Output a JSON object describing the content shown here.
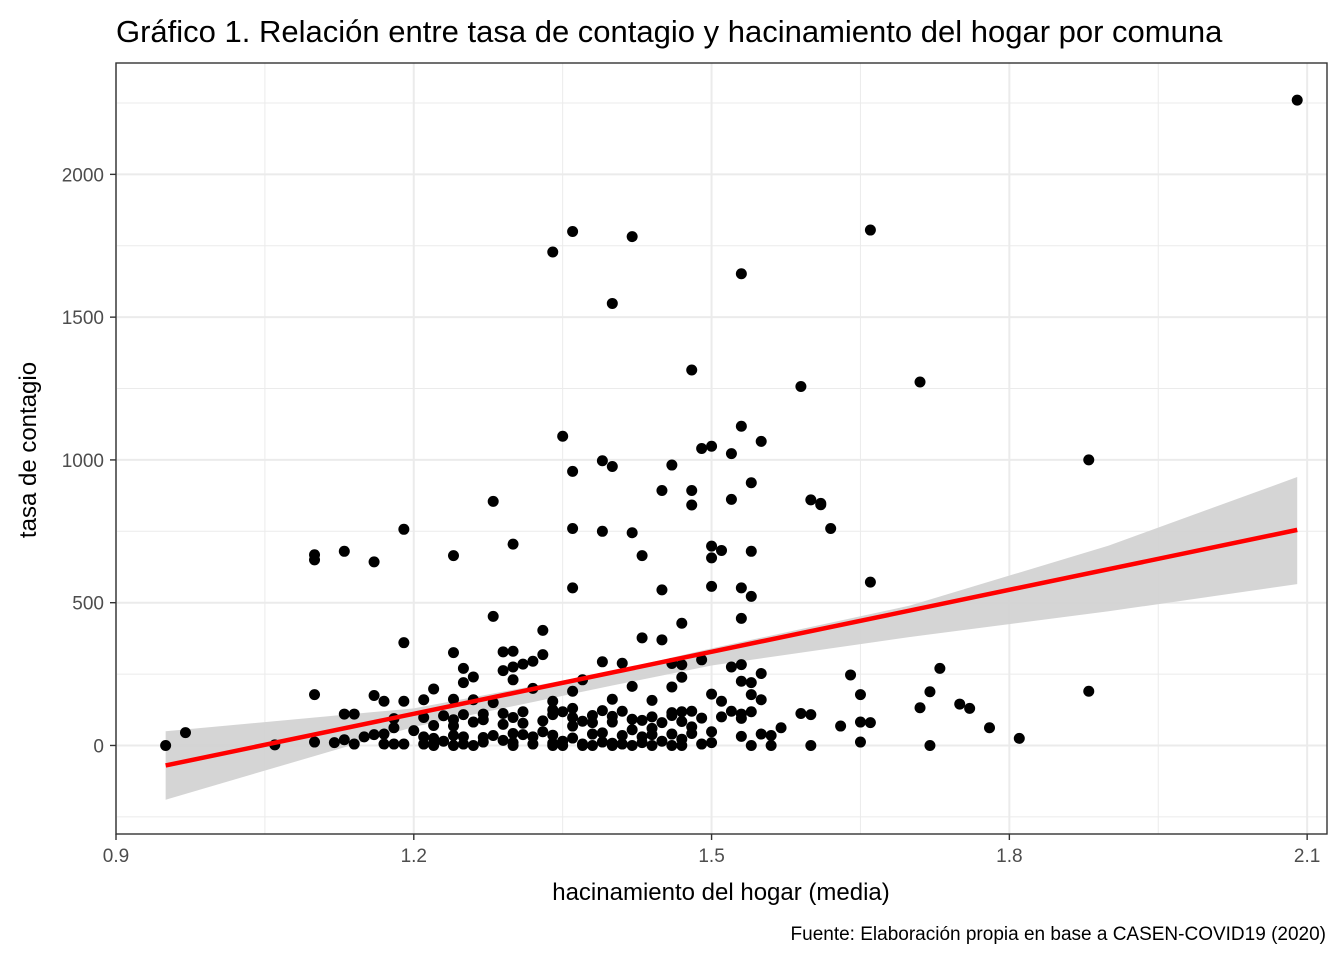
{
  "chart_data": {
    "type": "scatter",
    "title": "Gráfico 1. Relación entre tasa de contagio y hacinamiento del hogar por comuna",
    "xlabel": "hacinamiento del hogar (media)",
    "ylabel": "tasa de contagio",
    "caption": "Fuente: Elaboración propia en base a CASEN-COVID19 (2020)",
    "xlim": [
      0.9,
      2.12
    ],
    "ylim": [
      -310,
      2390
    ],
    "x_ticks": [
      0.9,
      1.2,
      1.5,
      1.8,
      2.1
    ],
    "x_tick_labels": [
      "0.9",
      "1.2",
      "1.5",
      "1.8",
      "2.1"
    ],
    "y_ticks": [
      0,
      500,
      1000,
      1500,
      2000
    ],
    "y_tick_labels": [
      "0",
      "500",
      "1000",
      "1500",
      "2000"
    ],
    "grid": true,
    "legend": "none",
    "colors": {
      "points": "#000000",
      "fit_line": "#ff0000",
      "ribbon": "#d3d3d3",
      "grid": "#ebebeb"
    },
    "fit_line": {
      "x": [
        0.95,
        2.09
      ],
      "y": [
        -70,
        755
      ]
    },
    "confidence_band": {
      "x": [
        0.95,
        1.2,
        1.4,
        1.5,
        1.7,
        1.9,
        2.09
      ],
      "lower": [
        -190,
        65,
        210,
        280,
        380,
        470,
        565
      ],
      "upper": [
        50,
        130,
        260,
        340,
        490,
        700,
        940
      ]
    },
    "points": [
      [
        2.09,
        2260
      ],
      [
        1.66,
        1805
      ],
      [
        1.36,
        1800
      ],
      [
        1.42,
        1782
      ],
      [
        1.34,
        1728
      ],
      [
        1.53,
        1652
      ],
      [
        1.4,
        1548
      ],
      [
        1.48,
        1315
      ],
      [
        1.59,
        1257
      ],
      [
        1.71,
        1273
      ],
      [
        1.53,
        1118
      ],
      [
        1.35,
        1083
      ],
      [
        1.55,
        1065
      ],
      [
        1.5,
        1048
      ],
      [
        1.49,
        1040
      ],
      [
        1.52,
        1022
      ],
      [
        1.39,
        997
      ],
      [
        1.4,
        977
      ],
      [
        1.46,
        982
      ],
      [
        1.36,
        960
      ],
      [
        1.88,
        1000
      ],
      [
        1.54,
        920
      ],
      [
        1.45,
        893
      ],
      [
        1.48,
        893
      ],
      [
        1.52,
        862
      ],
      [
        1.6,
        860
      ],
      [
        1.61,
        848
      ],
      [
        1.61,
        843
      ],
      [
        1.28,
        855
      ],
      [
        1.48,
        842
      ],
      [
        1.62,
        760
      ],
      [
        1.36,
        760
      ],
      [
        1.19,
        757
      ],
      [
        1.39,
        750
      ],
      [
        1.42,
        745
      ],
      [
        1.3,
        705
      ],
      [
        1.5,
        698
      ],
      [
        1.51,
        683
      ],
      [
        1.54,
        680
      ],
      [
        1.1,
        668
      ],
      [
        1.1,
        650
      ],
      [
        1.13,
        680
      ],
      [
        1.16,
        643
      ],
      [
        1.24,
        665
      ],
      [
        1.43,
        665
      ],
      [
        1.5,
        657
      ],
      [
        1.66,
        572
      ],
      [
        1.5,
        557
      ],
      [
        1.36,
        552
      ],
      [
        1.53,
        552
      ],
      [
        1.45,
        545
      ],
      [
        1.54,
        522
      ],
      [
        1.28,
        452
      ],
      [
        1.53,
        445
      ],
      [
        1.47,
        428
      ],
      [
        1.33,
        403
      ],
      [
        1.43,
        377
      ],
      [
        1.45,
        370
      ],
      [
        1.19,
        360
      ],
      [
        1.24,
        325
      ],
      [
        1.3,
        330
      ],
      [
        1.29,
        328
      ],
      [
        1.33,
        318
      ],
      [
        1.39,
        293
      ],
      [
        1.41,
        288
      ],
      [
        1.49,
        300
      ],
      [
        1.46,
        287
      ],
      [
        1.47,
        283
      ],
      [
        1.25,
        270
      ],
      [
        1.32,
        295
      ],
      [
        1.31,
        285
      ],
      [
        1.3,
        275
      ],
      [
        1.53,
        283
      ],
      [
        1.29,
        262
      ],
      [
        1.52,
        275
      ],
      [
        1.73,
        270
      ],
      [
        1.64,
        247
      ],
      [
        1.55,
        252
      ],
      [
        1.54,
        220
      ],
      [
        1.53,
        225
      ],
      [
        1.37,
        230
      ],
      [
        1.42,
        207
      ],
      [
        1.3,
        230
      ],
      [
        1.47,
        239
      ],
      [
        1.26,
        240
      ],
      [
        1.25,
        220
      ],
      [
        1.46,
        205
      ],
      [
        1.1,
        178
      ],
      [
        1.16,
        175
      ],
      [
        1.22,
        198
      ],
      [
        1.36,
        190
      ],
      [
        1.32,
        200
      ],
      [
        1.5,
        180
      ],
      [
        1.54,
        178
      ],
      [
        1.65,
        178
      ],
      [
        1.72,
        188
      ],
      [
        1.88,
        190
      ],
      [
        1.17,
        155
      ],
      [
        1.19,
        155
      ],
      [
        1.21,
        160
      ],
      [
        1.24,
        162
      ],
      [
        1.26,
        160
      ],
      [
        1.28,
        150
      ],
      [
        1.34,
        155
      ],
      [
        1.4,
        162
      ],
      [
        1.44,
        158
      ],
      [
        1.51,
        155
      ],
      [
        1.55,
        160
      ],
      [
        1.48,
        120
      ],
      [
        1.47,
        118
      ],
      [
        1.46,
        115
      ],
      [
        1.41,
        120
      ],
      [
        1.39,
        122
      ],
      [
        1.36,
        130
      ],
      [
        1.35,
        118
      ],
      [
        1.34,
        125
      ],
      [
        1.31,
        118
      ],
      [
        1.29,
        112
      ],
      [
        1.27,
        110
      ],
      [
        1.25,
        108
      ],
      [
        1.23,
        104
      ],
      [
        1.21,
        98
      ],
      [
        1.18,
        94
      ],
      [
        1.14,
        110
      ],
      [
        1.13,
        110
      ],
      [
        1.52,
        120
      ],
      [
        1.53,
        110
      ],
      [
        1.54,
        118
      ],
      [
        1.59,
        112
      ],
      [
        1.6,
        108
      ],
      [
        1.71,
        132
      ],
      [
        1.75,
        145
      ],
      [
        1.76,
        130
      ],
      [
        1.53,
        95
      ],
      [
        1.51,
        100
      ],
      [
        1.49,
        96
      ],
      [
        1.47,
        84
      ],
      [
        1.45,
        80
      ],
      [
        1.43,
        88
      ],
      [
        1.42,
        92
      ],
      [
        1.4,
        82
      ],
      [
        1.38,
        80
      ],
      [
        1.37,
        85
      ],
      [
        1.33,
        86
      ],
      [
        1.31,
        78
      ],
      [
        1.29,
        74
      ],
      [
        1.26,
        82
      ],
      [
        1.24,
        68
      ],
      [
        1.22,
        70
      ],
      [
        1.2,
        52
      ],
      [
        1.18,
        62
      ],
      [
        1.78,
        62
      ],
      [
        1.65,
        82
      ],
      [
        1.66,
        80
      ],
      [
        1.63,
        68
      ],
      [
        1.57,
        62
      ],
      [
        1.55,
        40
      ],
      [
        1.53,
        32
      ],
      [
        1.5,
        48
      ],
      [
        1.48,
        42
      ],
      [
        1.46,
        40
      ],
      [
        1.44,
        38
      ],
      [
        1.43,
        30
      ],
      [
        1.41,
        35
      ],
      [
        1.39,
        44
      ],
      [
        1.38,
        40
      ],
      [
        1.36,
        26
      ],
      [
        1.34,
        36
      ],
      [
        1.32,
        30
      ],
      [
        1.31,
        38
      ],
      [
        1.3,
        42
      ],
      [
        1.28,
        35
      ],
      [
        1.27,
        28
      ],
      [
        1.25,
        30
      ],
      [
        1.24,
        35
      ],
      [
        1.22,
        25
      ],
      [
        1.21,
        30
      ],
      [
        1.17,
        40
      ],
      [
        1.16,
        38
      ],
      [
        1.15,
        30
      ],
      [
        1.13,
        20
      ],
      [
        1.12,
        10
      ],
      [
        0.97,
        45
      ],
      [
        1.56,
        35
      ],
      [
        1.81,
        25
      ],
      [
        1.47,
        22
      ],
      [
        1.45,
        15
      ],
      [
        1.43,
        10
      ],
      [
        1.41,
        5
      ],
      [
        1.4,
        8
      ],
      [
        1.39,
        12
      ],
      [
        1.37,
        5
      ],
      [
        1.35,
        15
      ],
      [
        1.34,
        8
      ],
      [
        1.32,
        5
      ],
      [
        1.3,
        10
      ],
      [
        1.29,
        18
      ],
      [
        1.27,
        12
      ],
      [
        1.25,
        5
      ],
      [
        1.23,
        15
      ],
      [
        1.22,
        5
      ],
      [
        1.21,
        5
      ],
      [
        1.19,
        5
      ],
      [
        1.18,
        5
      ],
      [
        1.17,
        5
      ],
      [
        1.14,
        5
      ],
      [
        1.1,
        12
      ],
      [
        1.06,
        2
      ],
      [
        0.95,
        0
      ],
      [
        1.56,
        0
      ],
      [
        1.54,
        0
      ],
      [
        1.5,
        10
      ],
      [
        1.49,
        5
      ],
      [
        1.47,
        0
      ],
      [
        1.46,
        0
      ],
      [
        1.44,
        0
      ],
      [
        1.42,
        0
      ],
      [
        1.4,
        0
      ],
      [
        1.38,
        0
      ],
      [
        1.37,
        0
      ],
      [
        1.35,
        0
      ],
      [
        1.34,
        0
      ],
      [
        1.3,
        0
      ],
      [
        1.26,
        0
      ],
      [
        1.24,
        0
      ],
      [
        1.22,
        0
      ],
      [
        1.6,
        0
      ],
      [
        1.65,
        12
      ],
      [
        1.72,
        0
      ],
      [
        1.33,
        48
      ],
      [
        1.36,
        68
      ],
      [
        1.42,
        55
      ],
      [
        1.44,
        60
      ],
      [
        1.48,
        65
      ],
      [
        1.38,
        105
      ],
      [
        1.36,
        98
      ],
      [
        1.34,
        108
      ],
      [
        1.3,
        98
      ],
      [
        1.27,
        90
      ],
      [
        1.24,
        90
      ],
      [
        1.4,
        102
      ],
      [
        1.44,
        100
      ],
      [
        1.46,
        105
      ]
    ]
  }
}
